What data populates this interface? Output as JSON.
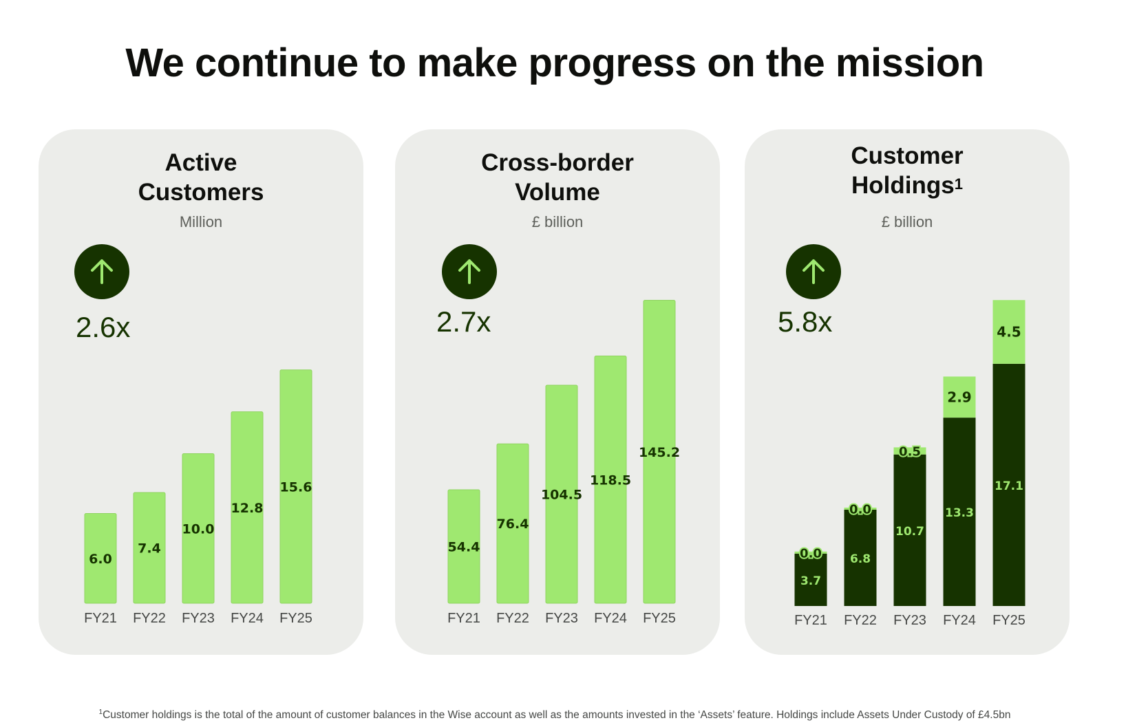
{
  "title": "We continue to make progress on the mission",
  "footnote": {
    "marker": "1",
    "text": "Customer holdings is the total of the amount of customer balances in the Wise account as well as the amounts invested in the ‘Assets’ feature. Holdings include Assets Under Custody of £4.5bn"
  },
  "colors": {
    "light_green": "#9fe870",
    "forest_green": "#163300",
    "card_bg": "#ecedea"
  },
  "cards": [
    {
      "title_line1": "Active",
      "title_line2": "Customers",
      "unit": "Million",
      "icon": "arrow-up-icon",
      "multiplier": "2.6x"
    },
    {
      "title_line1": "Cross-border",
      "title_line2": "Volume",
      "unit": "£ billion",
      "icon": "arrow-up-icon",
      "multiplier": "2.7x"
    },
    {
      "title_line1": "Customer",
      "title_line2": "Holdings",
      "title_sup": "1",
      "unit": "£ billion",
      "icon": "arrow-up-icon",
      "multiplier": "5.8x"
    }
  ],
  "chart_data": [
    {
      "type": "bar",
      "title": "Active Customers",
      "ylabel": "Million",
      "categories": [
        "FY21",
        "FY22",
        "FY23",
        "FY24",
        "FY25"
      ],
      "values": [
        6.0,
        7.4,
        10.0,
        12.8,
        15.6
      ],
      "value_labels": [
        "6.0",
        "7.4",
        "10.0",
        "12.8",
        "15.6"
      ],
      "ylim": [
        0,
        20
      ],
      "grid": false,
      "legend": "none"
    },
    {
      "type": "bar",
      "title": "Cross-border Volume",
      "ylabel": "£ billion",
      "categories": [
        "FY21",
        "FY22",
        "FY23",
        "FY24",
        "FY25"
      ],
      "values": [
        54.4,
        76.4,
        104.5,
        118.5,
        145.2
      ],
      "value_labels": [
        "54.4",
        "76.4",
        "104.5",
        "118.5",
        "145.2"
      ],
      "ylim": [
        0,
        150
      ],
      "grid": false,
      "legend": "none"
    },
    {
      "type": "bar",
      "stacked": true,
      "title": "Customer Holdings",
      "ylabel": "£ billion",
      "categories": [
        "FY21",
        "FY22",
        "FY23",
        "FY24",
        "FY25"
      ],
      "series": [
        {
          "values": [
            3.7,
            6.8,
            10.7,
            13.3,
            17.1
          ],
          "labels": [
            "3.7",
            "6.8",
            "10.7",
            "13.3",
            "17.1"
          ],
          "color": "#163300"
        },
        {
          "values": [
            0.0,
            0.0,
            0.5,
            2.9,
            4.5
          ],
          "labels": [
            "0.0",
            "0.0",
            "0.5",
            "2.9",
            "4.5"
          ],
          "color": "#9fe870"
        }
      ],
      "ylim": [
        0,
        22
      ],
      "grid": false,
      "legend": "none"
    }
  ]
}
